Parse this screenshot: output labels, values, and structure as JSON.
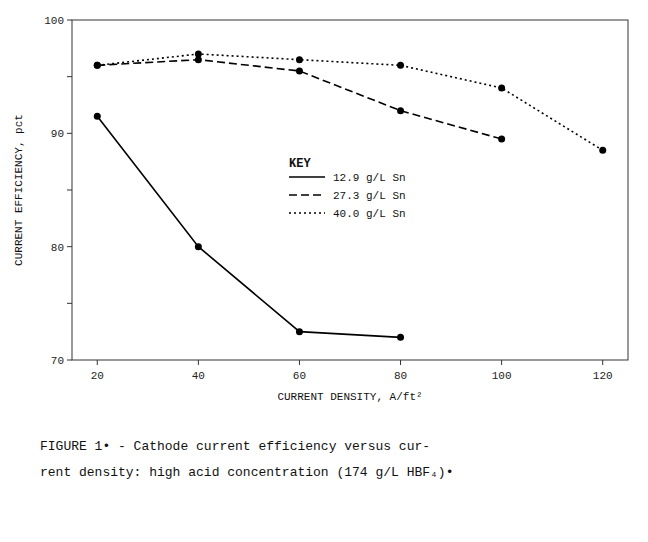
{
  "chart_data": {
    "type": "line",
    "x_label": "CURRENT DENSITY, A/ft²",
    "y_label": "CURRENT EFFICIENCY, pct",
    "series": [
      {
        "name": "12.9 g/L Sn",
        "color": "black",
        "line_style": "solid",
        "marker": "circle",
        "x": [
          20,
          40,
          60,
          80
        ],
        "values": [
          91.5,
          80.0,
          72.5,
          72.0
        ]
      },
      {
        "name": "27.3 g/L Sn",
        "color": "black",
        "line_style": "dashed",
        "marker": "circle",
        "x": [
          20,
          40,
          60,
          80,
          100
        ],
        "values": [
          96.0,
          96.5,
          95.5,
          92.0,
          89.5
        ]
      },
      {
        "name": "40.0 g/L Sn",
        "color": "black",
        "line_style": "dotted",
        "marker": "circle",
        "x": [
          20,
          40,
          60,
          80,
          100,
          120
        ],
        "values": [
          96.0,
          97.0,
          96.5,
          96.0,
          94.0,
          88.5
        ]
      }
    ],
    "xlim": [
      15,
      125
    ],
    "ylim": [
      70,
      100
    ],
    "xticks": [
      20,
      40,
      60,
      80,
      100,
      120
    ],
    "yticks": [
      70,
      {
        "value": 75,
        "label": null
      },
      80,
      {
        "value": 85,
        "label": null
      },
      90,
      {
        "value": 95,
        "label": null
      },
      100
    ],
    "legend": "center",
    "legend_title": "KEY",
    "caption": [
      "FIGURE 1• - Cathode current efficiency versus cur-",
      "rent density:  high acid concentration (174 g/L HBF₄)•"
    ],
    "grid": false
  }
}
